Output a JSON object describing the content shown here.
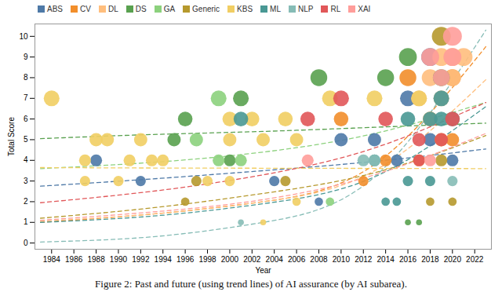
{
  "chart_data": {
    "type": "scatter",
    "caption": "Figure 2: Past and future (using trend lines) of AI assurance (by AI subarea).",
    "x_label": "Year",
    "y_label": "Total Score",
    "xlim": [
      1982.5,
      2023.5
    ],
    "xticks": [
      1984,
      1986,
      1988,
      1990,
      1992,
      1994,
      1996,
      1998,
      2000,
      2002,
      2004,
      2006,
      2008,
      2010,
      2012,
      2014,
      2016,
      2018,
      2020,
      2022
    ],
    "ylim": [
      -0.3,
      10.6
    ],
    "yticks": [
      0,
      1,
      2,
      3,
      4,
      5,
      6,
      7,
      8,
      9,
      10
    ],
    "legend": "top",
    "line_style": "dashed",
    "trend_x": [
      1983,
      1993,
      2003,
      2013,
      2023
    ],
    "series": [
      {
        "name": "ABS",
        "color": "#4e79a7",
        "x": [
          1988,
          1992,
          2004,
          2008,
          2010,
          2013,
          2015,
          2016,
          2018,
          2018,
          2020
        ],
        "values": [
          4,
          3,
          3,
          2,
          5,
          5,
          4,
          7,
          9,
          5,
          4
        ],
        "trend": [
          2.75,
          3.1,
          3.5,
          3.95,
          4.55
        ]
      },
      {
        "name": "CV",
        "color": "#f28e2b",
        "x": [
          2010,
          2012,
          2014,
          2016,
          2017,
          2018,
          2019,
          2020,
          2020
        ],
        "values": [
          6,
          3,
          4,
          8,
          4,
          6,
          5,
          8,
          5
        ],
        "trend": [
          1.0,
          1.4,
          2.0,
          3.8,
          9.5
        ]
      },
      {
        "name": "DL",
        "color": "#ffbe7d",
        "x": [
          2017,
          2018,
          2018,
          2019,
          2019,
          2020,
          2020,
          2021
        ],
        "values": [
          7,
          8,
          6,
          9,
          7,
          8,
          9,
          9
        ],
        "trend": [
          1.05,
          1.4,
          2.0,
          3.5,
          7.9
        ]
      },
      {
        "name": "DS",
        "color": "#59a14f",
        "x": [
          1995,
          1996,
          2000,
          2001,
          2008,
          2014,
          2016,
          2016,
          2017,
          2019
        ],
        "values": [
          5,
          6,
          4,
          7,
          8,
          8,
          9,
          1,
          1,
          8
        ],
        "trend": [
          5.05,
          5.25,
          5.4,
          5.6,
          5.8
        ]
      },
      {
        "name": "GA",
        "color": "#8cd17d",
        "x": [
          1997,
          1999,
          1999,
          2001,
          2009
        ],
        "values": [
          5,
          7,
          4,
          4,
          2
        ],
        "trend": [
          3.6,
          3.9,
          4.4,
          5.3,
          6.8
        ]
      },
      {
        "name": "Generic",
        "color": "#b6992d",
        "x": [
          1996,
          1997,
          2005,
          2018,
          2019,
          2019,
          2020
        ],
        "values": [
          2,
          3,
          3,
          2,
          10,
          4,
          2
        ],
        "trend": [
          1.2,
          1.7,
          2.4,
          3.4,
          5.2
        ]
      },
      {
        "name": "KBS",
        "color": "#f1ce63",
        "x": [
          1984,
          1987,
          1987,
          1988,
          1989,
          1990,
          1991,
          1992,
          1993,
          1994,
          1998,
          2000,
          2000,
          2000,
          2002,
          2003,
          2003,
          2005,
          2006,
          2006,
          2009,
          2013,
          2017
        ],
        "values": [
          7,
          4,
          3,
          5,
          5,
          3,
          4,
          5,
          4,
          4,
          3,
          6,
          5,
          3,
          6,
          5,
          1,
          6,
          5,
          2,
          7,
          7,
          7
        ],
        "trend": [
          3.65,
          3.63,
          3.62,
          3.61,
          3.6
        ]
      },
      {
        "name": "ML",
        "color": "#499894",
        "x": [
          2001,
          2013,
          2014,
          2015,
          2016,
          2016,
          2018,
          2018,
          2019,
          2019,
          2020
        ],
        "values": [
          6,
          4,
          2,
          2,
          6,
          3,
          6,
          3,
          7,
          6,
          6
        ],
        "trend": [
          1.0,
          1.3,
          1.9,
          3.2,
          6.6
        ]
      },
      {
        "name": "NLP",
        "color": "#86bcb6",
        "x": [
          2001,
          2012,
          2013,
          2020
        ],
        "values": [
          1,
          4,
          4,
          3
        ],
        "trend": [
          0.05,
          0.3,
          1.0,
          3.2,
          10.3
        ]
      },
      {
        "name": "RL",
        "color": "#e15759",
        "x": [
          2007,
          2010,
          2014,
          2017,
          2017,
          2019,
          2020
        ],
        "values": [
          6,
          7,
          6,
          5,
          4,
          5,
          6
        ],
        "trend": [
          1.95,
          2.5,
          3.3,
          4.6,
          6.8
        ]
      },
      {
        "name": "XAI",
        "color": "#ff9d9a",
        "x": [
          2007,
          2018,
          2018,
          2019,
          2020,
          2020
        ],
        "values": [
          4,
          9,
          4,
          8,
          10,
          9
        ],
        "trend": [
          1.1,
          1.5,
          2.1,
          3.3,
          5.3
        ]
      }
    ]
  }
}
